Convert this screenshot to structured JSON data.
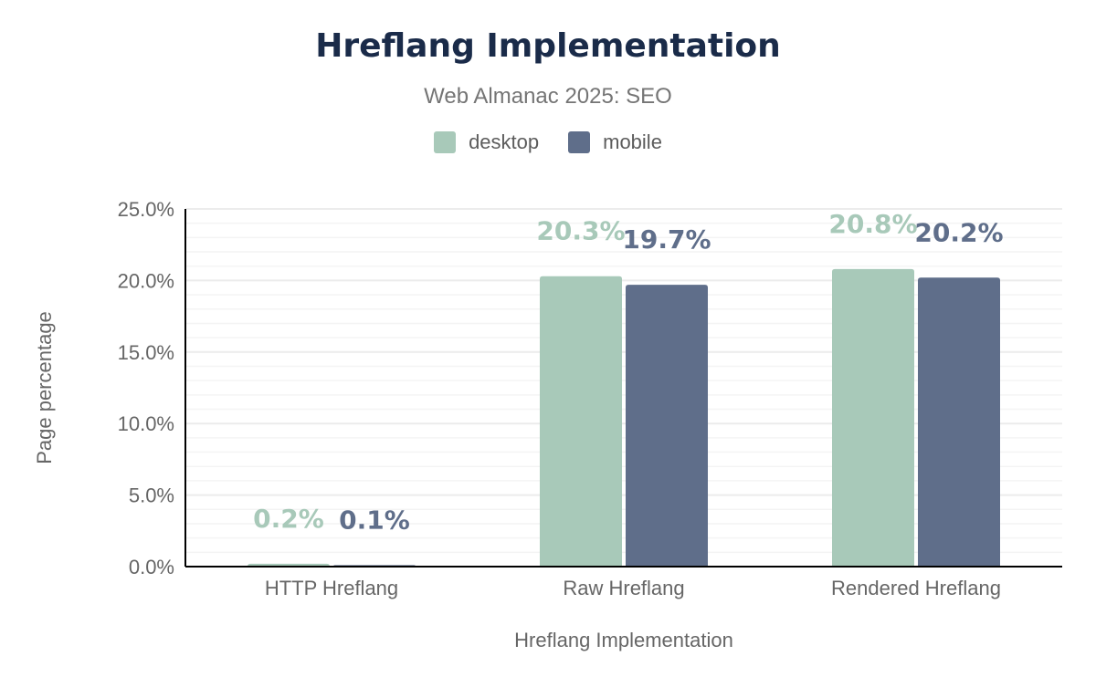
{
  "chart_data": {
    "type": "bar",
    "title": "Hreflang Implementation",
    "subtitle": "Web Almanac 2025: SEO",
    "xlabel": "Hreflang Implementation",
    "ylabel": "Page percentage",
    "categories": [
      "HTTP Hreflang",
      "Raw Hreflang",
      "Rendered Hreflang"
    ],
    "series": [
      {
        "name": "desktop",
        "values": [
          0.2,
          20.3,
          20.8
        ],
        "labels": [
          "0.2%",
          "20.3%",
          "20.8%"
        ],
        "color": "#a8c9b9"
      },
      {
        "name": "mobile",
        "values": [
          0.1,
          19.7,
          20.2
        ],
        "labels": [
          "0.1%",
          "19.7%",
          "20.2%"
        ],
        "color": "#5f6e8a"
      }
    ],
    "ylim": [
      0,
      25
    ],
    "yticks": [
      0,
      5,
      10,
      15,
      20,
      25
    ],
    "ytick_labels": [
      "0.0%",
      "5.0%",
      "10.0%",
      "15.0%",
      "20.0%",
      "25.0%"
    ],
    "grid": true,
    "legend_position": "top-center"
  }
}
